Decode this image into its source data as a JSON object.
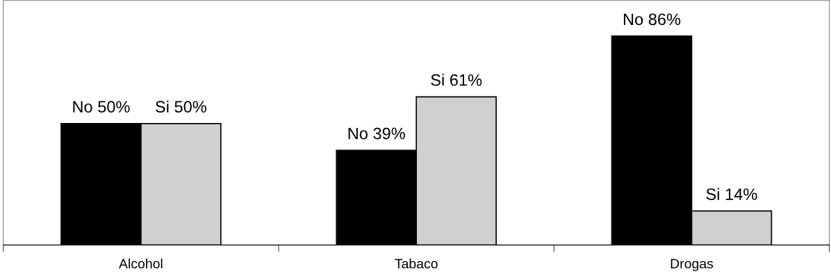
{
  "chart_data": {
    "type": "bar",
    "categories": [
      "Alcohol",
      "Tabaco",
      "Drogas"
    ],
    "series": [
      {
        "color": "#000000",
        "values": [
          50,
          39,
          86
        ],
        "value_labels": [
          "No 50%",
          "No 39%",
          "No 86%"
        ]
      },
      {
        "color": "#d0d0d0",
        "values": [
          50,
          61,
          14
        ],
        "value_labels": [
          "Si 50%",
          "Si 61%",
          "Si 14%"
        ]
      }
    ],
    "relative": false,
    "grid": false,
    "legend": false,
    "tick_labels": "x"
  }
}
